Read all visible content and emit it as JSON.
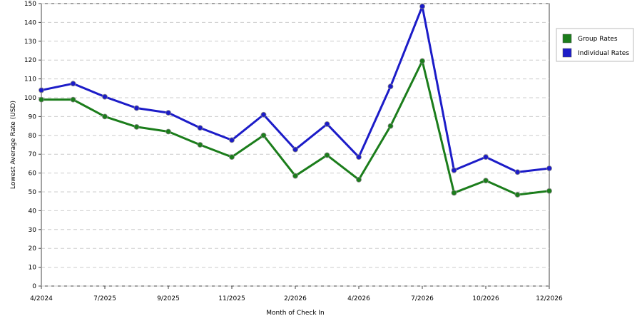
{
  "chart_data": {
    "type": "line",
    "x_label": "Month of Check In",
    "y_label": "Lowest Average Rate (USD)",
    "categories": [
      "4/2024",
      null,
      "7/2025",
      null,
      "9/2025",
      null,
      "11/2025",
      null,
      "2/2026",
      null,
      "4/2026",
      null,
      "7/2026",
      null,
      "10/2026",
      null,
      "12/2026"
    ],
    "series": [
      {
        "name": "Group Rates",
        "color": "#1b7d1b",
        "values": [
          99,
          99,
          90,
          84.5,
          82,
          75,
          68.5,
          80,
          58.5,
          69.5,
          56.5,
          85,
          119.5,
          49.5,
          56,
          48.5,
          50.5
        ]
      },
      {
        "name": "Individual Rates",
        "color": "#1c1cc8",
        "values": [
          104,
          107.5,
          100.5,
          94.5,
          92,
          84,
          77.5,
          91,
          72.5,
          86,
          68.5,
          106,
          148.5,
          61.5,
          68.5,
          60.5,
          62.5
        ]
      }
    ],
    "ylim": [
      0,
      150
    ],
    "yticks": [
      0,
      10,
      20,
      30,
      40,
      50,
      60,
      70,
      80,
      90,
      100,
      110,
      120,
      130,
      140,
      150
    ],
    "grid": true,
    "legend": "right"
  }
}
